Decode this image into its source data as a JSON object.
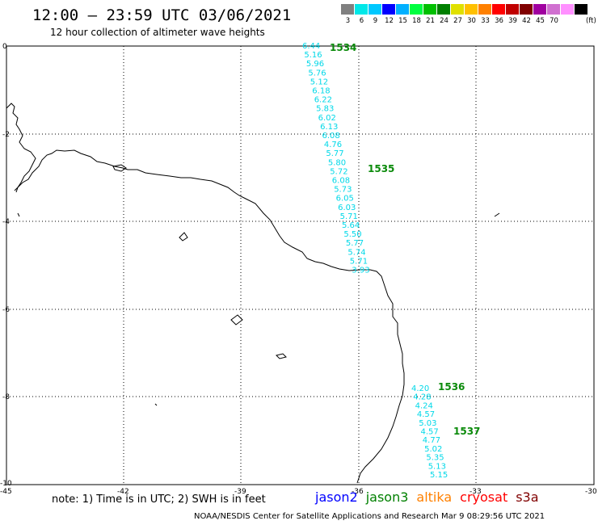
{
  "title": "12:00 – 23:59 UTC 03/06/2021",
  "subtitle": "12 hour collection of altimeter wave heights",
  "legend": {
    "colors": [
      "#808080",
      "#00e8e8",
      "#00c8ff",
      "#0000ff",
      "#00b0ff",
      "#00ff40",
      "#00c000",
      "#008000",
      "#e0e000",
      "#ffc000",
      "#ff8000",
      "#ff0000",
      "#c00000",
      "#800000",
      "#a000a0",
      "#d070d0",
      "#ff90ff",
      "#000000"
    ],
    "labels": [
      "3",
      "6",
      "9",
      "12",
      "15",
      "18",
      "21",
      "24",
      "27",
      "30",
      "33",
      "36",
      "39",
      "42",
      "45",
      "70"
    ],
    "unit": "(ft)"
  },
  "axes": {
    "y_ticks": [
      "0",
      "-2",
      "-4",
      "-6",
      "-8",
      "-10"
    ],
    "x_ticks": [
      "-45",
      "-42",
      "-39",
      "-36",
      "-33",
      "-30"
    ]
  },
  "passes": [
    {
      "label": "1534",
      "points": [
        "6.44",
        "5.16",
        "5.96",
        "5.76",
        "5.12",
        "6.18",
        "6.22",
        "5.83",
        "6.02",
        "6.13",
        "6.08",
        "4.76",
        "5.77",
        "5.80",
        "5.72",
        "6.08",
        "5.73",
        "6.05",
        "6.03",
        "5.71",
        "5.64",
        "5.50",
        "5.77",
        "5.74",
        "5.71",
        "3.93"
      ]
    },
    {
      "label": "1535",
      "points": []
    },
    {
      "label": "1536",
      "points": [
        "4.20",
        "4.28",
        "4.24",
        "4.57",
        "5.03",
        "4.57",
        "4.77",
        "5.02",
        "5.35",
        "5.13",
        "5.15"
      ]
    },
    {
      "label": "1537",
      "points": []
    }
  ],
  "note": "note: 1) Time is in UTC; 2) SWH is in feet",
  "satellites": [
    {
      "name": "jason2",
      "color": "#0000ff"
    },
    {
      "name": "jason3",
      "color": "#008000"
    },
    {
      "name": "altika",
      "color": "#ff8000"
    },
    {
      "name": "cryosat",
      "color": "#ff0000"
    },
    {
      "name": "s3a",
      "color": "#800000"
    }
  ],
  "footer": "NOAA/NESDIS Center for Satellite Applications and Research   Mar  9 08:29:56 UTC 2021"
}
